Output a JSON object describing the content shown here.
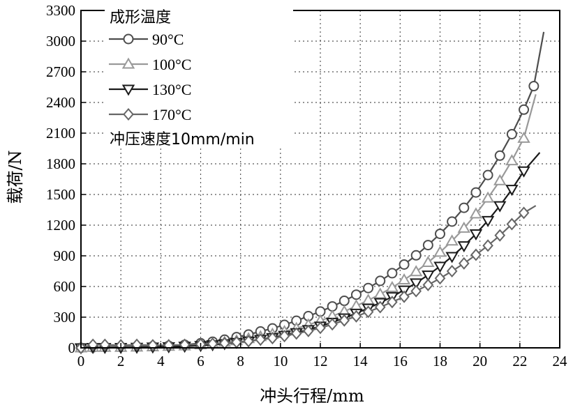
{
  "chart_data": {
    "type": "line",
    "title": "",
    "xlabel": "冲头行程/mm",
    "ylabel": "载荷/N",
    "xlim": [
      0,
      24
    ],
    "ylim": [
      0,
      3300
    ],
    "xticks": [
      0,
      2,
      4,
      6,
      8,
      10,
      12,
      14,
      16,
      18,
      20,
      22,
      24
    ],
    "yticks": [
      0,
      300,
      600,
      900,
      1200,
      1500,
      1800,
      2100,
      2400,
      2700,
      3000,
      3300
    ],
    "xtick_labels": [
      "0",
      "2",
      "4",
      "6",
      "8",
      "10",
      "12",
      "14",
      "16",
      "18",
      "20",
      "22",
      "24"
    ],
    "ytick_labels": [
      "0",
      "300",
      "600",
      "900",
      "1200",
      "1500",
      "1800",
      "2100",
      "2400",
      "2700",
      "3000",
      "3300"
    ],
    "grid": true,
    "legend_position": "top-left",
    "legend_title": "成形温度",
    "annotation": "冲压速度10mm/min",
    "series": [
      {
        "name": "90°C",
        "marker": "circle",
        "color": "#4d4d4d",
        "x": [
          0,
          0.6,
          1.2,
          2,
          2.8,
          3.6,
          4.4,
          5.2,
          6.0,
          6.6,
          7.2,
          7.8,
          8.4,
          9.0,
          9.6,
          10.2,
          10.8,
          11.4,
          12.0,
          12.6,
          13.2,
          13.8,
          14.4,
          15.0,
          15.6,
          16.2,
          16.8,
          17.4,
          18.0,
          18.6,
          19.2,
          19.8,
          20.4,
          21.0,
          21.6,
          22.2,
          22.7,
          23.2
        ],
        "y": [
          0,
          5,
          10,
          10,
          12,
          15,
          20,
          30,
          45,
          60,
          80,
          105,
          130,
          160,
          190,
          225,
          265,
          310,
          355,
          405,
          460,
          520,
          585,
          655,
          730,
          815,
          905,
          1005,
          1115,
          1235,
          1370,
          1520,
          1690,
          1880,
          2090,
          2330,
          2560,
          3090
        ]
      },
      {
        "name": "100°C",
        "marker": "triangle-up",
        "color": "#999999",
        "x": [
          0,
          0.6,
          1.2,
          2,
          2.8,
          3.6,
          4.4,
          5.2,
          6.0,
          6.6,
          7.2,
          7.8,
          8.4,
          9.0,
          9.6,
          10.2,
          10.8,
          11.4,
          12.0,
          12.6,
          13.2,
          13.8,
          14.4,
          15.0,
          15.6,
          16.2,
          16.8,
          17.4,
          18.0,
          18.6,
          19.2,
          19.8,
          20.4,
          21.0,
          21.6,
          22.2,
          22.8
        ],
        "y": [
          0,
          5,
          5,
          5,
          8,
          10,
          15,
          20,
          30,
          40,
          55,
          70,
          90,
          110,
          135,
          160,
          190,
          225,
          265,
          310,
          355,
          410,
          465,
          525,
          590,
          665,
          745,
          835,
          935,
          1045,
          1170,
          1310,
          1465,
          1635,
          1830,
          2050,
          2480
        ]
      },
      {
        "name": "130°C",
        "marker": "triangle-down",
        "color": "#1a1a1a",
        "x": [
          0,
          0.6,
          1.2,
          2,
          2.8,
          3.6,
          4.4,
          5.2,
          6.0,
          6.6,
          7.2,
          7.8,
          8.4,
          9.0,
          9.6,
          10.2,
          10.8,
          11.4,
          12.0,
          12.6,
          13.2,
          13.8,
          14.4,
          15.0,
          15.6,
          16.2,
          16.8,
          17.4,
          18.0,
          18.6,
          19.2,
          19.8,
          20.4,
          21.0,
          21.6,
          22.2,
          23.0
        ],
        "y": [
          0,
          3,
          3,
          3,
          5,
          8,
          10,
          15,
          22,
          30,
          40,
          52,
          66,
          82,
          100,
          122,
          148,
          178,
          212,
          250,
          292,
          338,
          388,
          442,
          500,
          565,
          635,
          712,
          798,
          893,
          998,
          1115,
          1245,
          1390,
          1550,
          1730,
          1910
        ]
      },
      {
        "name": "170°C",
        "marker": "diamond",
        "color": "#666666",
        "x": [
          0,
          0.6,
          1.2,
          2,
          2.8,
          3.6,
          4.4,
          5.2,
          6.0,
          6.6,
          7.2,
          7.8,
          8.4,
          9.0,
          9.6,
          10.2,
          10.8,
          11.4,
          12.0,
          12.6,
          13.2,
          13.8,
          14.4,
          15.0,
          15.6,
          16.2,
          16.8,
          17.4,
          18.0,
          18.6,
          19.2,
          19.8,
          20.4,
          21.0,
          21.6,
          22.2,
          22.8
        ],
        "y": [
          0,
          30,
          30,
          25,
          30,
          25,
          25,
          30,
          35,
          40,
          45,
          55,
          65,
          80,
          95,
          115,
          140,
          165,
          195,
          230,
          268,
          308,
          352,
          398,
          448,
          500,
          555,
          615,
          680,
          750,
          826,
          910,
          1000,
          1100,
          1210,
          1320,
          1390
        ]
      }
    ]
  }
}
